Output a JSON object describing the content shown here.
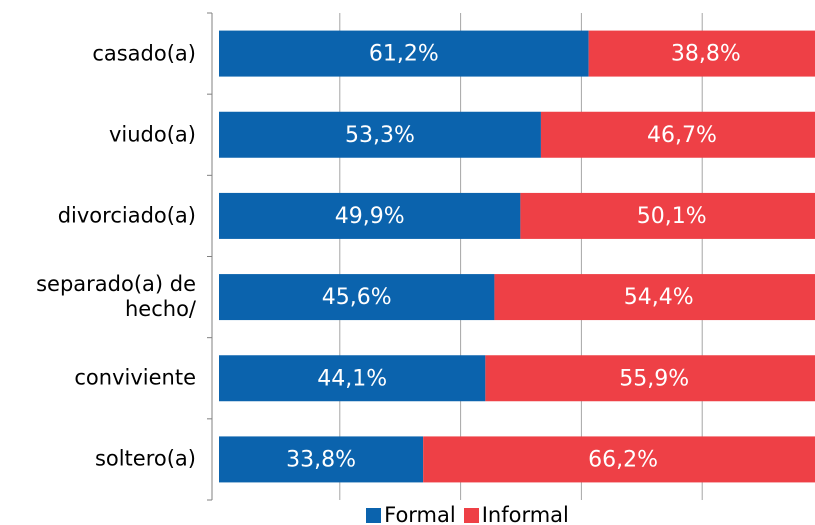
{
  "chart_data": {
    "type": "stacked_bar_horizontal",
    "categories": [
      "casado(a)",
      "viudo(a)",
      "divorciado(a)",
      "separado(a) de hecho/",
      "conviviente",
      "soltero(a)"
    ],
    "series": [
      {
        "name": "Formal",
        "color": "#0b63ad",
        "values": [
          61.2,
          53.3,
          49.9,
          45.6,
          44.1,
          33.8
        ],
        "value_labels": [
          "61,2%",
          "53,3%",
          "49,9%",
          "45,6%",
          "44,1%",
          "33,8%"
        ]
      },
      {
        "name": "Informal",
        "color": "#ee4046",
        "values": [
          38.8,
          46.7,
          50.1,
          54.4,
          55.9,
          66.2
        ],
        "value_labels": [
          "38,8%",
          "46,7%",
          "50,1%",
          "54,4%",
          "55,9%",
          "66,2%"
        ]
      }
    ],
    "xlim": [
      0,
      100
    ],
    "xticks": [
      0,
      20,
      40,
      60,
      80,
      100
    ],
    "grid": true,
    "legend": "bottom"
  }
}
